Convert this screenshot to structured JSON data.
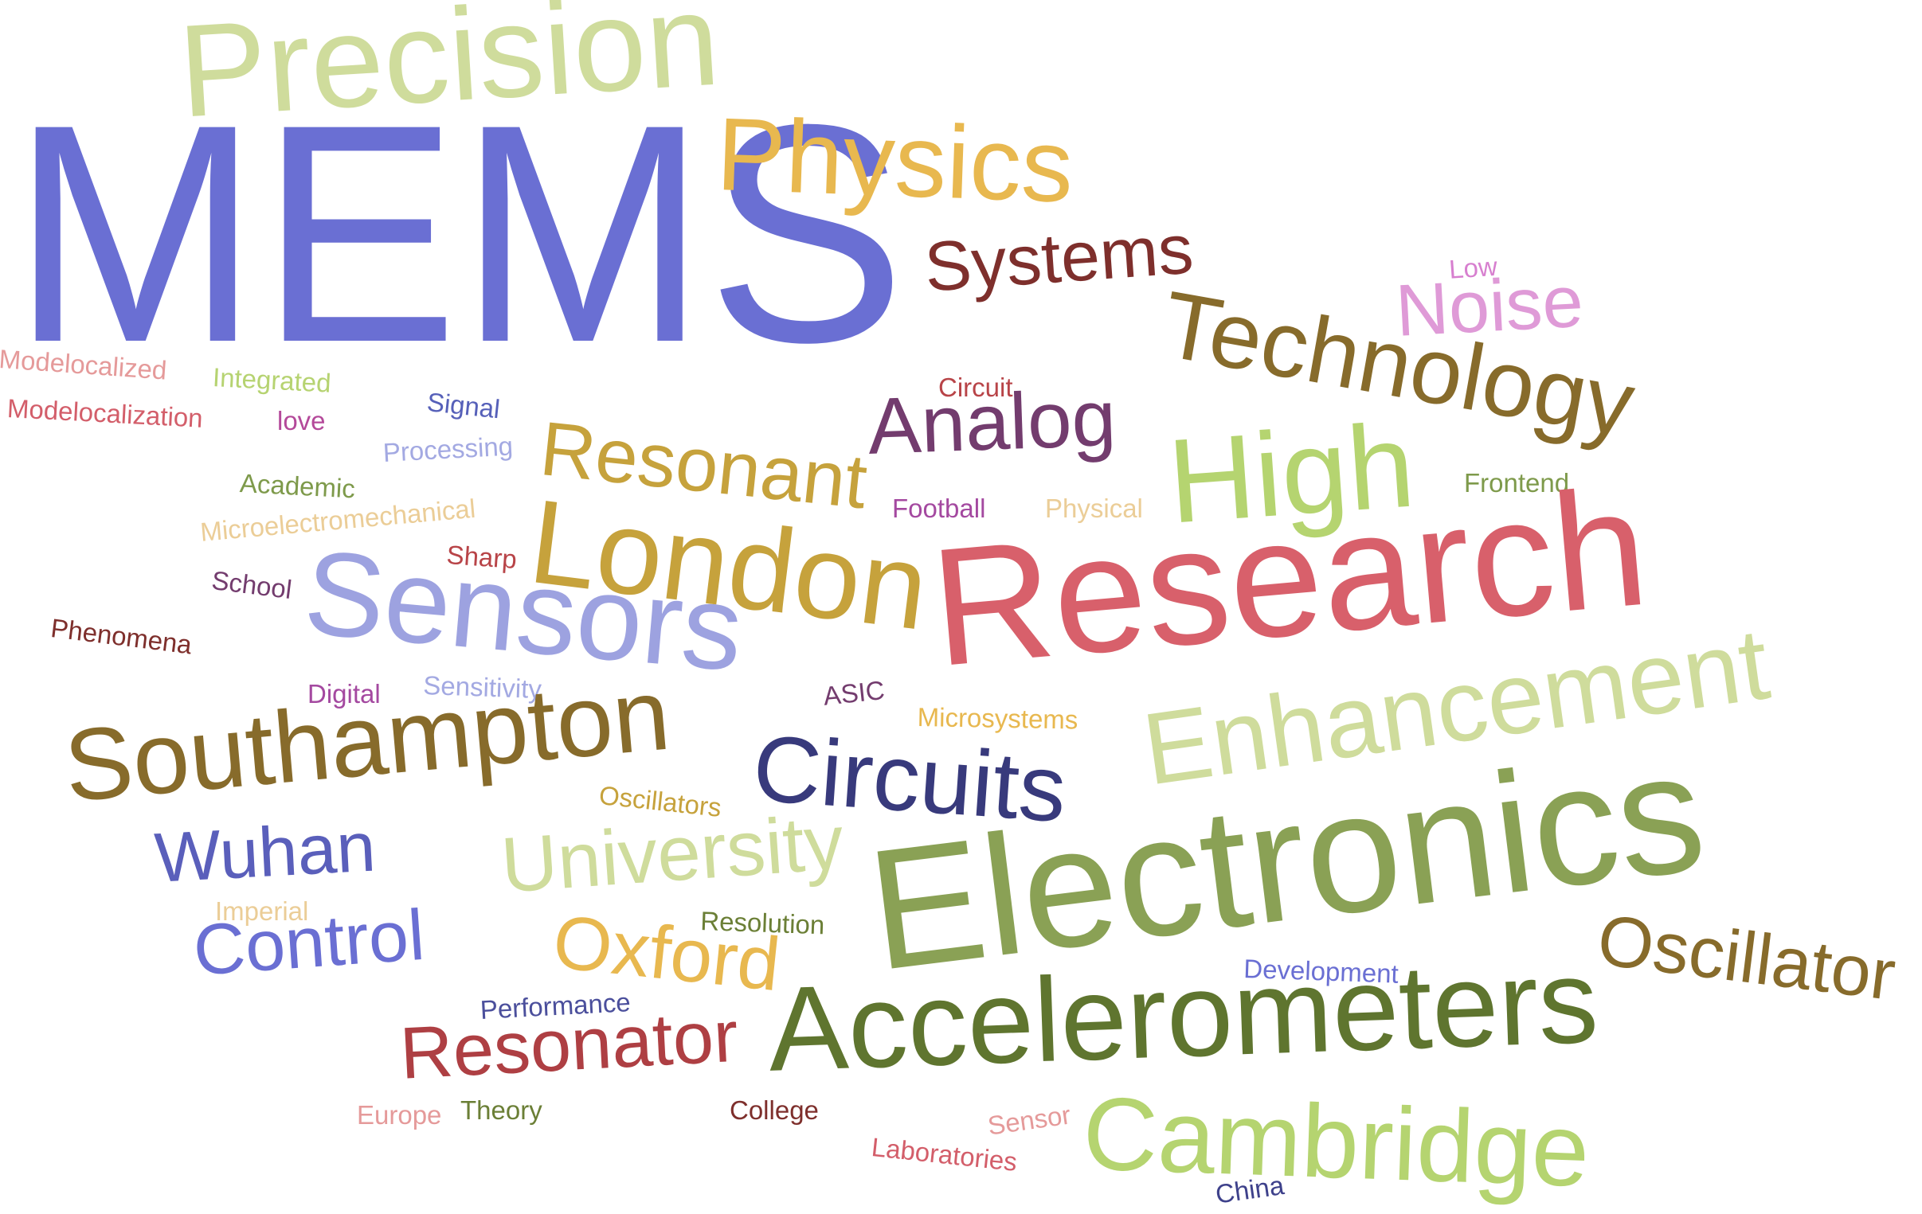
{
  "words": [
    {
      "text": "MEMS",
      "color": "#6a6fd3"
    },
    {
      "text": "Precision",
      "color": "#cfdc9c"
    },
    {
      "text": "Physics",
      "color": "#e8b84f"
    },
    {
      "text": "Systems",
      "color": "#7e2f2c"
    },
    {
      "text": "Low",
      "color": "#d77fcf"
    },
    {
      "text": "Noise",
      "color": "#df9ad7"
    },
    {
      "text": "Technology",
      "color": "#876b2b"
    },
    {
      "text": "Modelocalized",
      "color": "#e59a9a"
    },
    {
      "text": "Integrated",
      "color": "#b6d371"
    },
    {
      "text": "Signal",
      "color": "#5660b9"
    },
    {
      "text": "Circuit",
      "color": "#b84448"
    },
    {
      "text": "love",
      "color": "#b4499a"
    },
    {
      "text": "Modelocalization",
      "color": "#d35e6a"
    },
    {
      "text": "Processing",
      "color": "#a3a9e2"
    },
    {
      "text": "Analog",
      "color": "#733c6e"
    },
    {
      "text": "High",
      "color": "#b5d470"
    },
    {
      "text": "Frontend",
      "color": "#7e9a4b"
    },
    {
      "text": "Resonant",
      "color": "#c6a23c"
    },
    {
      "text": "Academic",
      "color": "#7e9a4b"
    },
    {
      "text": "Microelectromechanical",
      "color": "#ebcd97"
    },
    {
      "text": "Football",
      "color": "#a449a0"
    },
    {
      "text": "Physical",
      "color": "#ebcd97"
    },
    {
      "text": "London",
      "color": "#c6a23c"
    },
    {
      "text": "Sharp",
      "color": "#b84448"
    },
    {
      "text": "Research",
      "color": "#d8606b"
    },
    {
      "text": "School",
      "color": "#733c6e"
    },
    {
      "text": "Sensors",
      "color": "#9da2e0"
    },
    {
      "text": "Phenomena",
      "color": "#7e2f2c"
    },
    {
      "text": "Digital",
      "color": "#a449a0"
    },
    {
      "text": "Sensitivity",
      "color": "#a3a9e2"
    },
    {
      "text": "ASIC",
      "color": "#733c6e"
    },
    {
      "text": "Microsystems",
      "color": "#e8b84f"
    },
    {
      "text": "Enhancement",
      "color": "#cfdc9c"
    },
    {
      "text": "Southampton",
      "color": "#876b2b"
    },
    {
      "text": "Circuits",
      "color": "#383a7c"
    },
    {
      "text": "Oscillators",
      "color": "#c6a23c"
    },
    {
      "text": "Wuhan",
      "color": "#5a5fbb"
    },
    {
      "text": "University",
      "color": "#cfdc9c"
    },
    {
      "text": "Electronics",
      "color": "#8aa155"
    },
    {
      "text": "Imperial",
      "color": "#ebcd97"
    },
    {
      "text": "Resolution",
      "color": "#6b7f36"
    },
    {
      "text": "Oscillator",
      "color": "#876b2b"
    },
    {
      "text": "Control",
      "color": "#6a6fd3"
    },
    {
      "text": "Oxford",
      "color": "#e8b84f"
    },
    {
      "text": "Development",
      "color": "#6a6fd3"
    },
    {
      "text": "Performance",
      "color": "#4b4f9c"
    },
    {
      "text": "Accelerometers",
      "color": "#5f752f"
    },
    {
      "text": "Resonator",
      "color": "#ae3f43"
    },
    {
      "text": "Europe",
      "color": "#e59a9a"
    },
    {
      "text": "Theory",
      "color": "#6b7f36"
    },
    {
      "text": "College",
      "color": "#7e2f2c"
    },
    {
      "text": "Sensor",
      "color": "#e59a9a"
    },
    {
      "text": "Cambridge",
      "color": "#b5d470"
    },
    {
      "text": "Laboratories",
      "color": "#d35e6a"
    },
    {
      "text": "China",
      "color": "#3e418b"
    }
  ]
}
